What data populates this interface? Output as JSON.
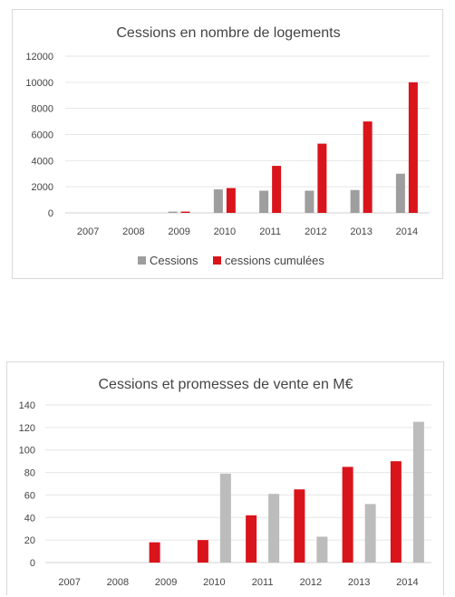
{
  "chart_data": [
    {
      "type": "bar",
      "title": "Cessions en nombre de logements",
      "categories": [
        "2007",
        "2008",
        "2009",
        "2010",
        "2011",
        "2012",
        "2013",
        "2014"
      ],
      "series": [
        {
          "name": "Cessions",
          "color": "#9e9e9e",
          "values": [
            0,
            0,
            100,
            1800,
            1700,
            1700,
            1750,
            3000
          ]
        },
        {
          "name": "cessions cumulées",
          "color": "#d9141b",
          "values": [
            0,
            0,
            100,
            1900,
            3600,
            5300,
            7000,
            10000
          ]
        }
      ],
      "ylim": [
        0,
        12000
      ],
      "yticks": [
        "0",
        "2000",
        "4000",
        "6000",
        "8000",
        "10000",
        "12000"
      ],
      "grid": true,
      "legend": "bottom"
    },
    {
      "type": "bar",
      "title": "Cessions et promesses de vente en M€",
      "categories": [
        "2007",
        "2008",
        "2009",
        "2010",
        "2011",
        "2012",
        "2013",
        "2014"
      ],
      "series": [
        {
          "color": "#d9141b",
          "values": [
            0,
            0,
            18,
            20,
            42,
            65,
            85,
            90
          ]
        },
        {
          "color": "#bcbcbc",
          "values": [
            0,
            0,
            0,
            79,
            61,
            23,
            52,
            125
          ]
        }
      ],
      "ylim": [
        0,
        140
      ],
      "yticks": [
        "0",
        "20",
        "40",
        "60",
        "80",
        "100",
        "120",
        "140"
      ],
      "grid": true,
      "legend": "none"
    }
  ]
}
